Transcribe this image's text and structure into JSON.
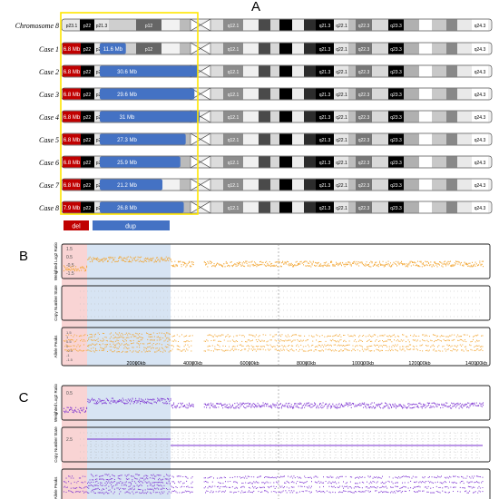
{
  "panel_labels": {
    "a": "A",
    "b": "B",
    "c": "C"
  },
  "chromosome": {
    "title": "Chromosome 8",
    "bands": [
      {
        "label": "p23.1",
        "color": "#e6e6e6"
      },
      {
        "label": "p22",
        "color": "#000000"
      },
      {
        "label": "p21.3",
        "color": "#e6e6e6"
      },
      {
        "label": "p12",
        "color": "#666666"
      },
      {
        "label": "q12.1",
        "color": "#8c8c8c"
      },
      {
        "label": "q21.3",
        "color": "#000000"
      },
      {
        "label": "q22.1",
        "color": "#e6e6e6"
      },
      {
        "label": "q22.3",
        "color": "#777777"
      },
      {
        "label": "q23.3",
        "color": "#000000"
      },
      {
        "label": "q24.3",
        "color": "#ffffff"
      }
    ]
  },
  "cases": [
    {
      "label": "Case 1",
      "del": "6.8 Mb",
      "dup": "11.6 Mb"
    },
    {
      "label": "Case 2",
      "del": "6.8 Mb",
      "dup": "30.6 Mb"
    },
    {
      "label": "Case 3",
      "del": "6.8 Mb",
      "dup": "29.6 Mb"
    },
    {
      "label": "Case 4",
      "del": "6.8 Mb",
      "dup": "31 Mb"
    },
    {
      "label": "Case 5",
      "del": "6.8 Mb",
      "dup": "27.3 Mb"
    },
    {
      "label": "Case 6",
      "del": "6.8 Mb",
      "dup": "25.9 Mb"
    },
    {
      "label": "Case 7",
      "del": "6.8 Mb",
      "dup": "21.2 Mb"
    },
    {
      "label": "Case 8",
      "del": "7.9 Mb",
      "dup": "26.8 Mb"
    }
  ],
  "legend": {
    "del_label": "del",
    "dup_label": "dup"
  },
  "colors": {
    "del": "#c00000",
    "dup": "#4472c4",
    "highlight": "#ffe600",
    "orange_trace": "#f2a22a",
    "purple_trace": "#7a2fd0",
    "pink_region": "#f7c6c6",
    "blue_region": "#c9dbef"
  },
  "plot_tracks": {
    "weighted_label": "Weighted Log2 Ratio",
    "copy_label": "Copy Number State",
    "allele_label": "Allele Peaks",
    "b_weighted_ticks": [
      "1.5",
      "0.5",
      "-0.5",
      "-1.5"
    ],
    "c_weighted_ticks": [
      "0.5"
    ],
    "c_copy_ticks": [
      "2.5"
    ],
    "b_allele_ticks": [
      "1.5",
      "1",
      "0.5",
      "0",
      "-0.5",
      "-1",
      "-1.5"
    ],
    "x_ticks": [
      "20000kb",
      "40000kb",
      "60000kb",
      "80000kb",
      "100000kb",
      "120000kb",
      "140000kb"
    ]
  }
}
